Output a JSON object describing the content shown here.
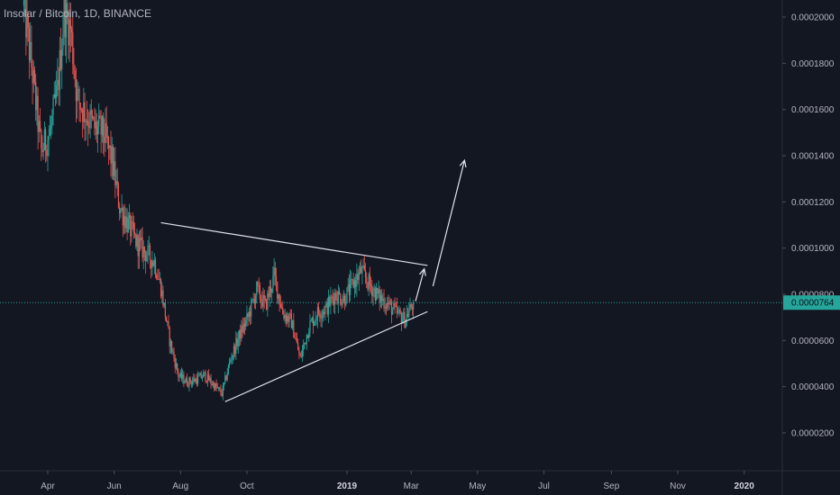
{
  "chart_title": "Insolar / Bitcoin, 1D, BINANCE",
  "colors": {
    "background": "#131722",
    "up": "#26a69a",
    "down": "#ef5350",
    "drawing": "#e0e3eb",
    "current_price_line": "#26a69a",
    "axis_text": "#b2b5be"
  },
  "chart_data": {
    "type": "candlestick",
    "title": "Insolar / Bitcoin, 1D, BINANCE",
    "xlabel": "",
    "ylabel": "",
    "x_ticks": [
      "Apr",
      "Jun",
      "Aug",
      "Oct",
      "2019",
      "Mar",
      "May",
      "Jul",
      "Sep",
      "Nov",
      "2020"
    ],
    "x_tick_dates": [
      "2018-04-01",
      "2018-06-01",
      "2018-08-01",
      "2018-10-01",
      "2019-01-01",
      "2019-03-01",
      "2019-05-01",
      "2019-07-01",
      "2019-09-01",
      "2019-11-01",
      "2020-01-01"
    ],
    "y_ticks": [
      "0.0002000",
      "0.0001800",
      "0.0001600",
      "0.0001400",
      "0.0001200",
      "0.0001000",
      "0.0000800",
      "0.0000600",
      "0.0000400",
      "0.0000200"
    ],
    "y_tick_values": [
      0.0002,
      0.00018,
      0.00016,
      0.00014,
      0.00012,
      0.0001,
      8e-05,
      6e-05,
      4e-05,
      2e-05
    ],
    "ylim": [
      4e-06,
      0.000208
    ],
    "xlim": [
      "2018-03-10",
      "2020-02-01"
    ],
    "current_price": "0.0000764",
    "current_price_value": 7.64e-05,
    "price_path": [
      [
        "2018-03-10",
        0.000205
      ],
      [
        "2018-03-18",
        0.000175
      ],
      [
        "2018-03-26",
        0.000142
      ],
      [
        "2018-04-03",
        0.00015
      ],
      [
        "2018-04-10",
        0.000168
      ],
      [
        "2018-04-16",
        0.000202
      ],
      [
        "2018-04-22",
        0.000195
      ],
      [
        "2018-04-28",
        0.000165
      ],
      [
        "2018-05-06",
        0.000158
      ],
      [
        "2018-05-14",
        0.000152
      ],
      [
        "2018-05-22",
        0.00015
      ],
      [
        "2018-05-30",
        0.000138
      ],
      [
        "2018-06-06",
        0.000118
      ],
      [
        "2018-06-14",
        0.00011
      ],
      [
        "2018-06-22",
        0.000102
      ],
      [
        "2018-06-30",
        9.8e-05
      ],
      [
        "2018-07-08",
        9.4e-05
      ],
      [
        "2018-07-14",
        8.3e-05
      ],
      [
        "2018-07-22",
        6e-05
      ],
      [
        "2018-07-30",
        4.5e-05
      ],
      [
        "2018-08-07",
        4.2e-05
      ],
      [
        "2018-08-15",
        4.3e-05
      ],
      [
        "2018-08-23",
        4.5e-05
      ],
      [
        "2018-08-31",
        4.1e-05
      ],
      [
        "2018-09-08",
        3.7e-05
      ],
      [
        "2018-09-16",
        5.2e-05
      ],
      [
        "2018-09-24",
        6.2e-05
      ],
      [
        "2018-10-02",
        7e-05
      ],
      [
        "2018-10-10",
        8.2e-05
      ],
      [
        "2018-10-18",
        7.5e-05
      ],
      [
        "2018-10-26",
        8.8e-05
      ],
      [
        "2018-11-03",
        7.2e-05
      ],
      [
        "2018-11-11",
        6.8e-05
      ],
      [
        "2018-11-19",
        5.2e-05
      ],
      [
        "2018-11-27",
        6.6e-05
      ],
      [
        "2018-12-05",
        7.2e-05
      ],
      [
        "2018-12-13",
        7.4e-05
      ],
      [
        "2018-12-21",
        8e-05
      ],
      [
        "2018-12-29",
        7.8e-05
      ],
      [
        "2019-01-06",
        8.4e-05
      ],
      [
        "2019-01-14",
        9e-05
      ],
      [
        "2019-01-22",
        8.4e-05
      ],
      [
        "2019-01-30",
        7.9e-05
      ],
      [
        "2019-02-07",
        7.6e-05
      ],
      [
        "2019-02-15",
        7.2e-05
      ],
      [
        "2019-02-23",
        6.9e-05
      ],
      [
        "2019-03-03",
        7.64e-05
      ]
    ],
    "drawings": {
      "resistance_line": {
        "from": [
          "2018-07-14",
          0.000111
        ],
        "to": [
          "2019-03-16",
          9.25e-05
        ]
      },
      "support_line": {
        "from": [
          "2018-09-11",
          3.35e-05
        ],
        "to": [
          "2019-03-16",
          7.25e-05
        ]
      },
      "arrow_short": {
        "from": [
          "2019-03-05",
          7.7e-05
        ],
        "to": [
          "2019-03-13",
          9.1e-05
        ]
      },
      "arrow_long": {
        "from": [
          "2019-03-21",
          8.35e-05
        ],
        "to": [
          "2019-04-19",
          0.000138
        ]
      }
    }
  }
}
